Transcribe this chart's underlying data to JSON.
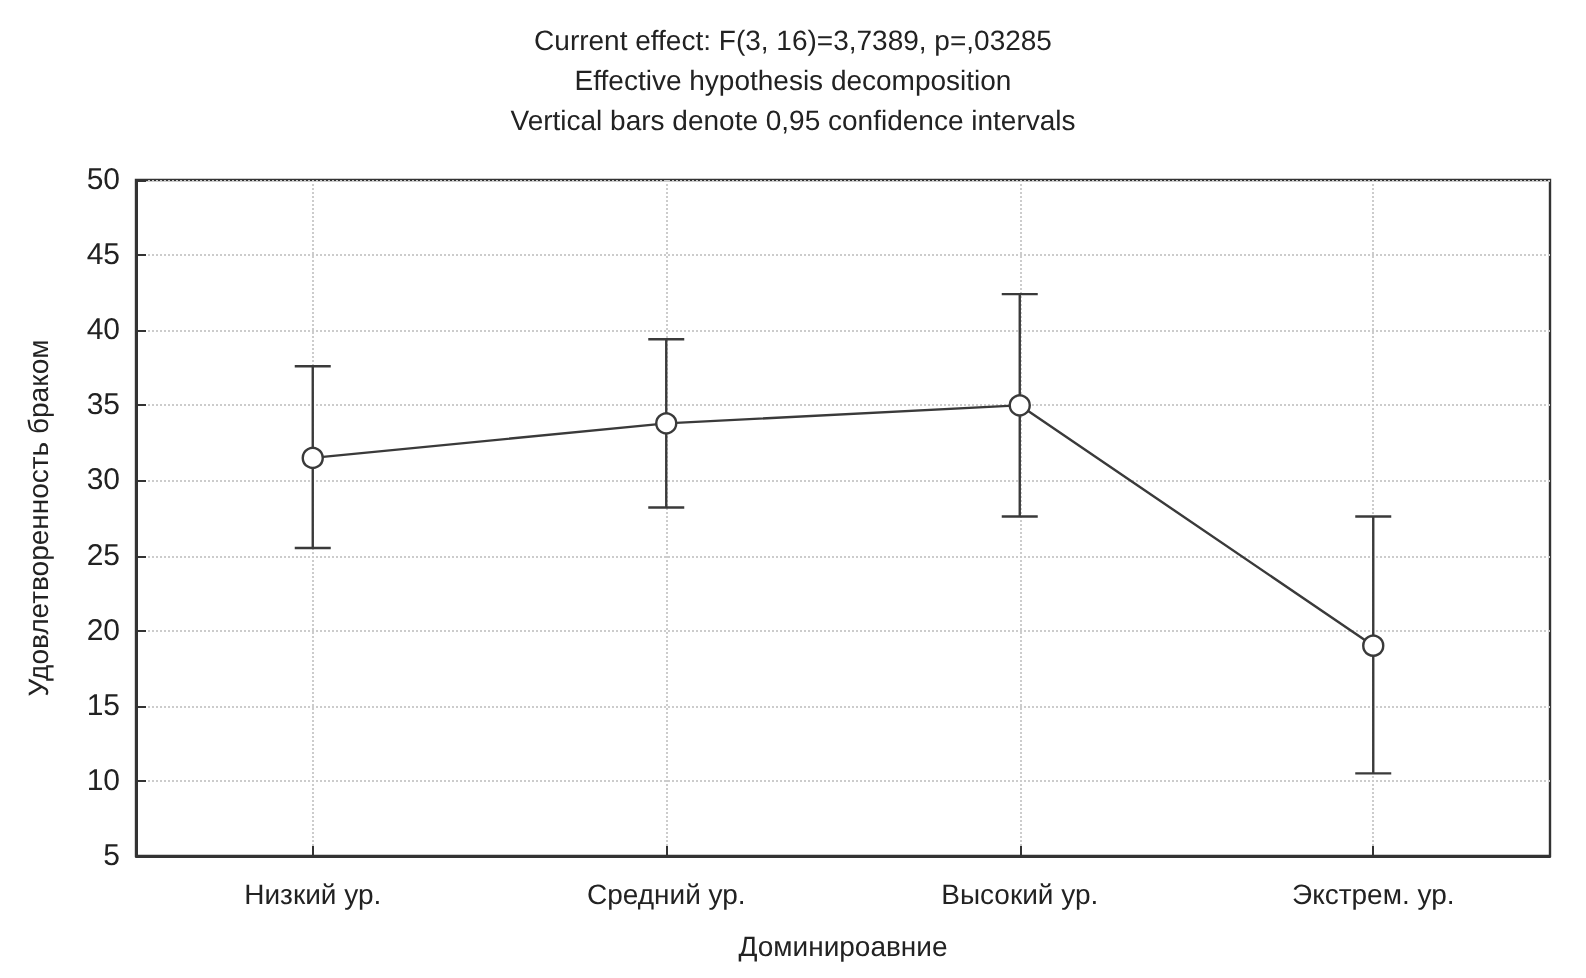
{
  "chart_data": {
    "type": "line",
    "title": "Current effect: F(3, 16)=3,7389, p=,03285",
    "subtitle": "Effective hypothesis decomposition",
    "annotations": [
      "Vertical bars denote 0,95 confidence intervals"
    ],
    "xlabel": "Доминироавние",
    "ylabel": "Удовлетворенность браком",
    "categories": [
      "Низкий ур.",
      "Средний ур.",
      "Высокий ур.",
      "Экстрем. ур."
    ],
    "series": [
      {
        "color": "#3a3a3a",
        "values": [
          31.5,
          33.8,
          35.0,
          19.0
        ],
        "errors": [
          [
            25.5,
            37.6
          ],
          [
            28.2,
            39.4
          ],
          [
            27.6,
            42.4
          ],
          [
            10.5,
            27.6
          ]
        ]
      }
    ],
    "ylim": [
      5,
      50
    ],
    "yticks": [
      5,
      10,
      15,
      20,
      25,
      30,
      35,
      40,
      45,
      50
    ],
    "grid": true,
    "marker": "circle",
    "line_style": "solid"
  }
}
